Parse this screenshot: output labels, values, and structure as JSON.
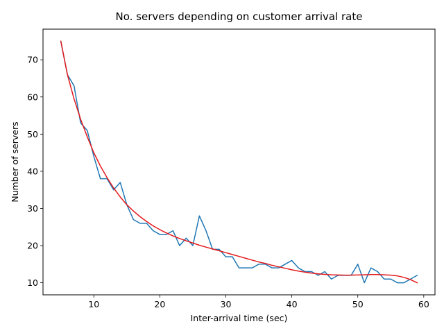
{
  "chart_data": {
    "type": "line",
    "title": "No. servers depending on customer arrival rate",
    "xlabel": "Inter-arrival time (sec)",
    "ylabel": "Number of servers",
    "xlim": [
      2.3,
      61.7
    ],
    "ylim": [
      6.75,
      78.25
    ],
    "xticks": [
      10,
      20,
      30,
      40,
      50,
      60
    ],
    "yticks": [
      10,
      20,
      30,
      40,
      50,
      60,
      70
    ],
    "grid": false,
    "series": [
      {
        "color": "#1f77b4",
        "x": [
          5,
          6,
          7,
          8,
          9,
          10,
          11,
          12,
          13,
          14,
          15,
          16,
          17,
          18,
          19,
          20,
          21,
          22,
          23,
          24,
          25,
          26,
          27,
          28,
          29,
          30,
          31,
          32,
          33,
          34,
          35,
          36,
          37,
          38,
          39,
          40,
          41,
          42,
          43,
          44,
          45,
          46,
          47,
          48,
          49,
          50,
          51,
          52,
          53,
          54,
          55,
          56,
          57,
          58,
          59
        ],
        "y": [
          75,
          66,
          63,
          53,
          51,
          44,
          38,
          38,
          35,
          37,
          31,
          27,
          26,
          26,
          24,
          23,
          23,
          24,
          20,
          22,
          20,
          28,
          24,
          19,
          19,
          17,
          17,
          14,
          14,
          14,
          15,
          15,
          14,
          14,
          15,
          16,
          14,
          13,
          13,
          12,
          13,
          11,
          12,
          12,
          12,
          15,
          10,
          14,
          13,
          11,
          11,
          10,
          10,
          11,
          12
        ]
      },
      {
        "color": "#e41a1c",
        "x": [
          5,
          6,
          7,
          8,
          9,
          10,
          11,
          12,
          13,
          14,
          15,
          16,
          17,
          18,
          19,
          20,
          21,
          22,
          23,
          24,
          25,
          26,
          27,
          28,
          29,
          30,
          31,
          32,
          33,
          34,
          35,
          36,
          37,
          38,
          39,
          40,
          41,
          42,
          43,
          44,
          45,
          46,
          47,
          48,
          49,
          50,
          51,
          52,
          53,
          54,
          55,
          56,
          57,
          58,
          59
        ],
        "y": [
          75,
          66,
          59.5,
          54,
          49.3,
          45,
          41.4,
          38.3,
          35.5,
          33.1,
          31,
          29.3,
          27.8,
          26.5,
          25.3,
          24.3,
          23.4,
          22.6,
          21.9,
          21.3,
          20.7,
          20.1,
          19.6,
          19.1,
          18.6,
          18.1,
          17.6,
          17.1,
          16.6,
          16.1,
          15.6,
          15.2,
          14.7,
          14.3,
          13.9,
          13.5,
          13.15,
          12.85,
          12.6,
          12.4,
          12.25,
          12.15,
          12.1,
          12.05,
          12.05,
          12.1,
          12.15,
          12.2,
          12.2,
          12.15,
          12.05,
          11.85,
          11.45,
          10.85,
          10
        ]
      }
    ]
  }
}
